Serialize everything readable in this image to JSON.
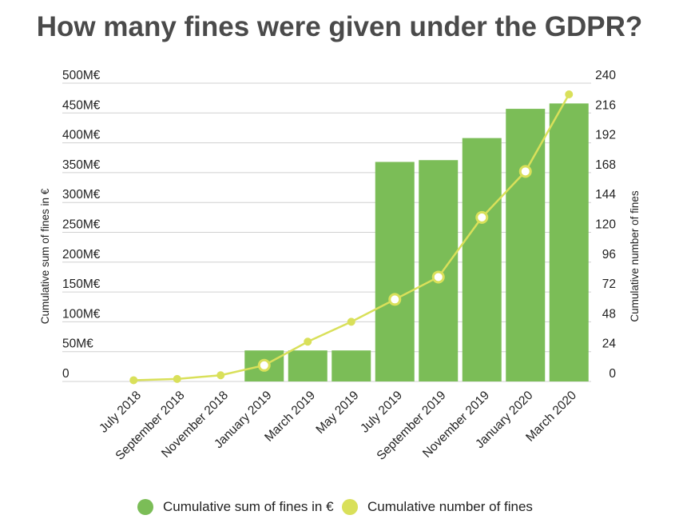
{
  "title": "How many fines were given under the GDPR?",
  "colors": {
    "bar": "#7bbd57",
    "line": "#d9e05a",
    "grid": "#d0d0d0",
    "text": "#222222",
    "title": "#4a4a4a"
  },
  "chart_data": {
    "type": "bar+line",
    "title": "How many fines were given under the GDPR?",
    "categories": [
      "July 2018",
      "September 2018",
      "November 2018",
      "January 2019",
      "March 2019",
      "May 2019",
      "July 2019",
      "September 2019",
      "November 2019",
      "January 2020",
      "March 2020"
    ],
    "y_left": {
      "label": "Cumulative sum of fines in €",
      "ticks": [
        "0",
        "50M€",
        "100M€",
        "150M€",
        "200M€",
        "250M€",
        "300M€",
        "350M€",
        "400M€",
        "450M€",
        "500M€"
      ],
      "range": [
        0,
        500
      ]
    },
    "y_right": {
      "label": "Cumulative number of fines",
      "ticks": [
        "0",
        "24",
        "48",
        "72",
        "96",
        "120",
        "144",
        "168",
        "192",
        "216",
        "240"
      ],
      "range": [
        0,
        240
      ]
    },
    "series": [
      {
        "name": "Cumulative sum of fines in €",
        "type": "bar",
        "axis": "left",
        "values": [
          0,
          0,
          0,
          52,
          52,
          52,
          368,
          371,
          408,
          457,
          466
        ]
      },
      {
        "name": "Cumulative number of fines",
        "type": "line",
        "axis": "right",
        "values": [
          1,
          2,
          5,
          13,
          32,
          48,
          66,
          84,
          132,
          169,
          231
        ],
        "highlighted": [
          false,
          false,
          false,
          true,
          false,
          false,
          true,
          true,
          true,
          true,
          false
        ]
      }
    ],
    "grid": true,
    "legend_position": "bottom"
  }
}
